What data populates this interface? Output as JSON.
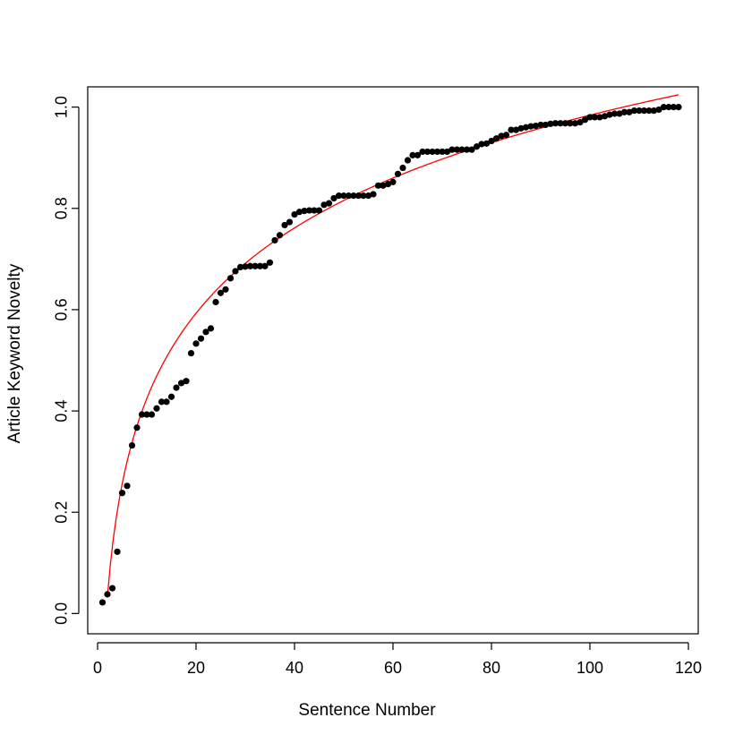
{
  "chart_data": {
    "type": "scatter",
    "title": "",
    "xlabel": "Sentence Number",
    "ylabel": "Article Keyword Novelty",
    "xlim": [
      -2,
      122
    ],
    "ylim": [
      -0.04,
      1.04
    ],
    "xticks": [
      0,
      20,
      40,
      60,
      80,
      100,
      120
    ],
    "xtick_labels": [
      "0",
      "20",
      "40",
      "60",
      "80",
      "100",
      "120"
    ],
    "yticks": [
      0.0,
      0.2,
      0.4,
      0.6,
      0.8,
      1.0
    ],
    "ytick_labels": [
      "0.0",
      "0.2",
      "0.4",
      "0.6",
      "0.8",
      "1.0"
    ],
    "grid": false,
    "colors": {
      "points": "#000000",
      "fit": "#ff0000",
      "frame": "#000000"
    },
    "series": [
      {
        "type": "scatter",
        "x": [
          1,
          2,
          3,
          4,
          5,
          6,
          7,
          8,
          9,
          10,
          11,
          12,
          13,
          14,
          15,
          16,
          17,
          18,
          19,
          20,
          21,
          22,
          23,
          24,
          25,
          26,
          27,
          28,
          29,
          30,
          31,
          32,
          33,
          34,
          35,
          36,
          37,
          38,
          39,
          40,
          41,
          42,
          43,
          44,
          45,
          46,
          47,
          48,
          49,
          50,
          51,
          52,
          53,
          54,
          55,
          56,
          57,
          58,
          59,
          60,
          61,
          62,
          63,
          64,
          65,
          66,
          67,
          68,
          69,
          70,
          71,
          72,
          73,
          74,
          75,
          76,
          77,
          78,
          79,
          80,
          81,
          82,
          83,
          84,
          85,
          86,
          87,
          88,
          89,
          90,
          91,
          92,
          93,
          94,
          95,
          96,
          97,
          98,
          99,
          100,
          101,
          102,
          103,
          104,
          105,
          106,
          107,
          108,
          109,
          110,
          111,
          112,
          113,
          114,
          115,
          116,
          117,
          118
        ],
        "y": [
          0.022,
          0.038,
          0.05,
          0.122,
          0.238,
          0.252,
          0.332,
          0.367,
          0.393,
          0.393,
          0.393,
          0.405,
          0.418,
          0.418,
          0.428,
          0.446,
          0.455,
          0.459,
          0.514,
          0.533,
          0.543,
          0.556,
          0.563,
          0.615,
          0.633,
          0.64,
          0.662,
          0.676,
          0.684,
          0.685,
          0.686,
          0.686,
          0.686,
          0.686,
          0.693,
          0.737,
          0.747,
          0.767,
          0.773,
          0.788,
          0.793,
          0.795,
          0.796,
          0.796,
          0.796,
          0.807,
          0.81,
          0.82,
          0.825,
          0.825,
          0.825,
          0.825,
          0.825,
          0.825,
          0.825,
          0.828,
          0.845,
          0.845,
          0.848,
          0.852,
          0.868,
          0.88,
          0.895,
          0.905,
          0.905,
          0.912,
          0.912,
          0.912,
          0.912,
          0.912,
          0.912,
          0.916,
          0.916,
          0.916,
          0.916,
          0.916,
          0.922,
          0.927,
          0.928,
          0.933,
          0.938,
          0.943,
          0.945,
          0.955,
          0.955,
          0.958,
          0.96,
          0.962,
          0.963,
          0.965,
          0.965,
          0.967,
          0.968,
          0.968,
          0.968,
          0.968,
          0.968,
          0.97,
          0.975,
          0.98,
          0.98,
          0.98,
          0.982,
          0.985,
          0.987,
          0.987,
          0.99,
          0.99,
          0.993,
          0.993,
          0.993,
          0.993,
          0.993,
          0.995,
          1.0,
          1.0,
          1.0,
          1.0
        ]
      },
      {
        "type": "line",
        "fit": "logarithmic",
        "x_range": [
          2.0,
          118
        ],
        "a": -0.135,
        "b": 0.243
      }
    ]
  }
}
